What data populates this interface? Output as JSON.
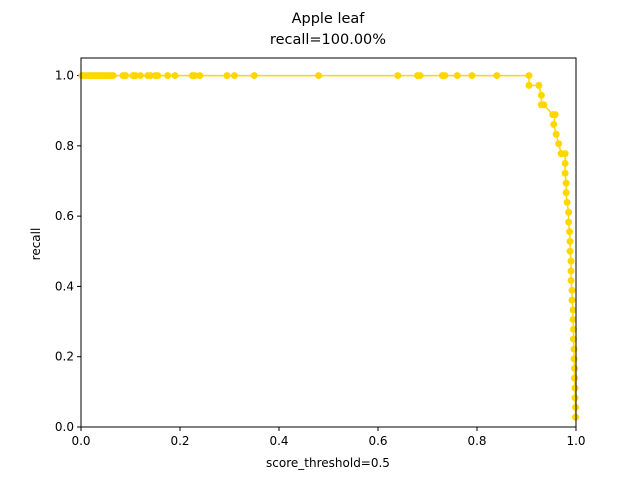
{
  "chart_data": {
    "type": "line",
    "title": "Apple leaf",
    "subtitle": "recall=100.00%",
    "x_label": "score_threshold=0.5",
    "y_label": "recall",
    "xlim": [
      0,
      1
    ],
    "ylim": [
      0,
      1.05
    ],
    "xticks": [
      {
        "value": 0,
        "label": "0.0"
      },
      {
        "value": 0.2,
        "label": "0.2"
      },
      {
        "value": 0.4,
        "label": "0.4"
      },
      {
        "value": 0.6,
        "label": "0.6"
      },
      {
        "value": 0.8,
        "label": "0.8"
      },
      {
        "value": 1,
        "label": "1.0"
      }
    ],
    "yticks": [
      {
        "value": 0,
        "label": "0.0"
      },
      {
        "value": 0.2,
        "label": "0.2"
      },
      {
        "value": 0.4,
        "label": "0.4"
      },
      {
        "value": 0.6,
        "label": "0.6"
      },
      {
        "value": 0.8,
        "label": "0.8"
      },
      {
        "value": 1,
        "label": "1.0"
      }
    ],
    "grid": false,
    "series": [
      {
        "color": "#ffd700",
        "x": [
          0.002,
          0.005,
          0.01,
          0.015,
          0.02,
          0.025,
          0.03,
          0.035,
          0.04,
          0.045,
          0.05,
          0.055,
          0.06,
          0.065,
          0.085,
          0.09,
          0.105,
          0.11,
          0.12,
          0.135,
          0.14,
          0.15,
          0.155,
          0.175,
          0.19,
          0.225,
          0.23,
          0.24,
          0.295,
          0.31,
          0.35,
          0.48,
          0.64,
          0.68,
          0.685,
          0.73,
          0.735,
          0.76,
          0.79,
          0.84,
          0.905,
          0.905,
          0.925,
          0.93,
          0.93,
          0.935,
          0.953,
          0.958,
          0.955,
          0.96,
          0.965,
          0.97,
          0.978,
          0.978,
          0.978,
          0.98,
          0.98,
          0.982,
          0.985,
          0.985,
          0.987,
          0.988,
          0.988,
          0.99,
          0.99,
          0.99,
          0.992,
          0.992,
          0.994,
          0.994,
          0.995,
          0.995,
          0.996,
          0.996,
          0.997,
          0.997,
          0.998,
          0.998,
          0.999,
          0.999
        ],
        "values": [
          1,
          1,
          1,
          1,
          1,
          1,
          1,
          1,
          1,
          1,
          1,
          1,
          1,
          1,
          1,
          1,
          1,
          1,
          1,
          1,
          1,
          1,
          1,
          1,
          1,
          1,
          1,
          1,
          1,
          1,
          1,
          1,
          1,
          1,
          1,
          1,
          1,
          1,
          1,
          1,
          1,
          0.972,
          0.972,
          0.944,
          0.917,
          0.917,
          0.889,
          0.889,
          0.861,
          0.833,
          0.806,
          0.778,
          0.778,
          0.75,
          0.722,
          0.694,
          0.667,
          0.639,
          0.611,
          0.583,
          0.556,
          0.528,
          0.5,
          0.472,
          0.444,
          0.417,
          0.389,
          0.361,
          0.333,
          0.306,
          0.278,
          0.25,
          0.222,
          0.194,
          0.167,
          0.139,
          0.111,
          0.083,
          0.056,
          0.028
        ]
      }
    ]
  }
}
